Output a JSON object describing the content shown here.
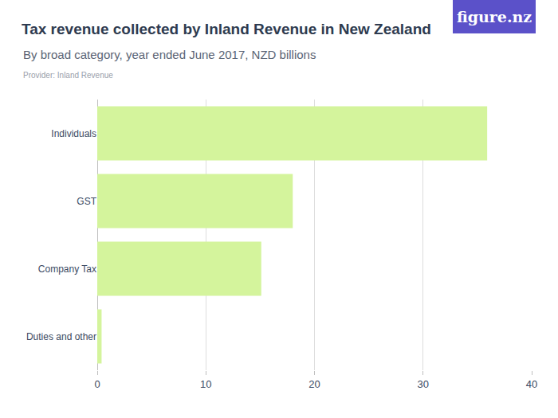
{
  "chart_data": {
    "type": "bar",
    "title": "Tax revenue collected by Inland Revenue in New Zealand",
    "subtitle": "By broad category, year ended June 2017, NZD billions",
    "source": "Provider: Inland Revenue",
    "logo": "figure.nz",
    "orientation": "horizontal",
    "categories": [
      "Individuals",
      "GST",
      "Company Tax",
      "Duties and other"
    ],
    "values": [
      35.9,
      18.0,
      15.1,
      0.4
    ],
    "color": "#d4f49c",
    "xlim": [
      0,
      40
    ],
    "xticks": [
      0,
      10,
      20,
      30,
      40
    ],
    "grid": true
  }
}
